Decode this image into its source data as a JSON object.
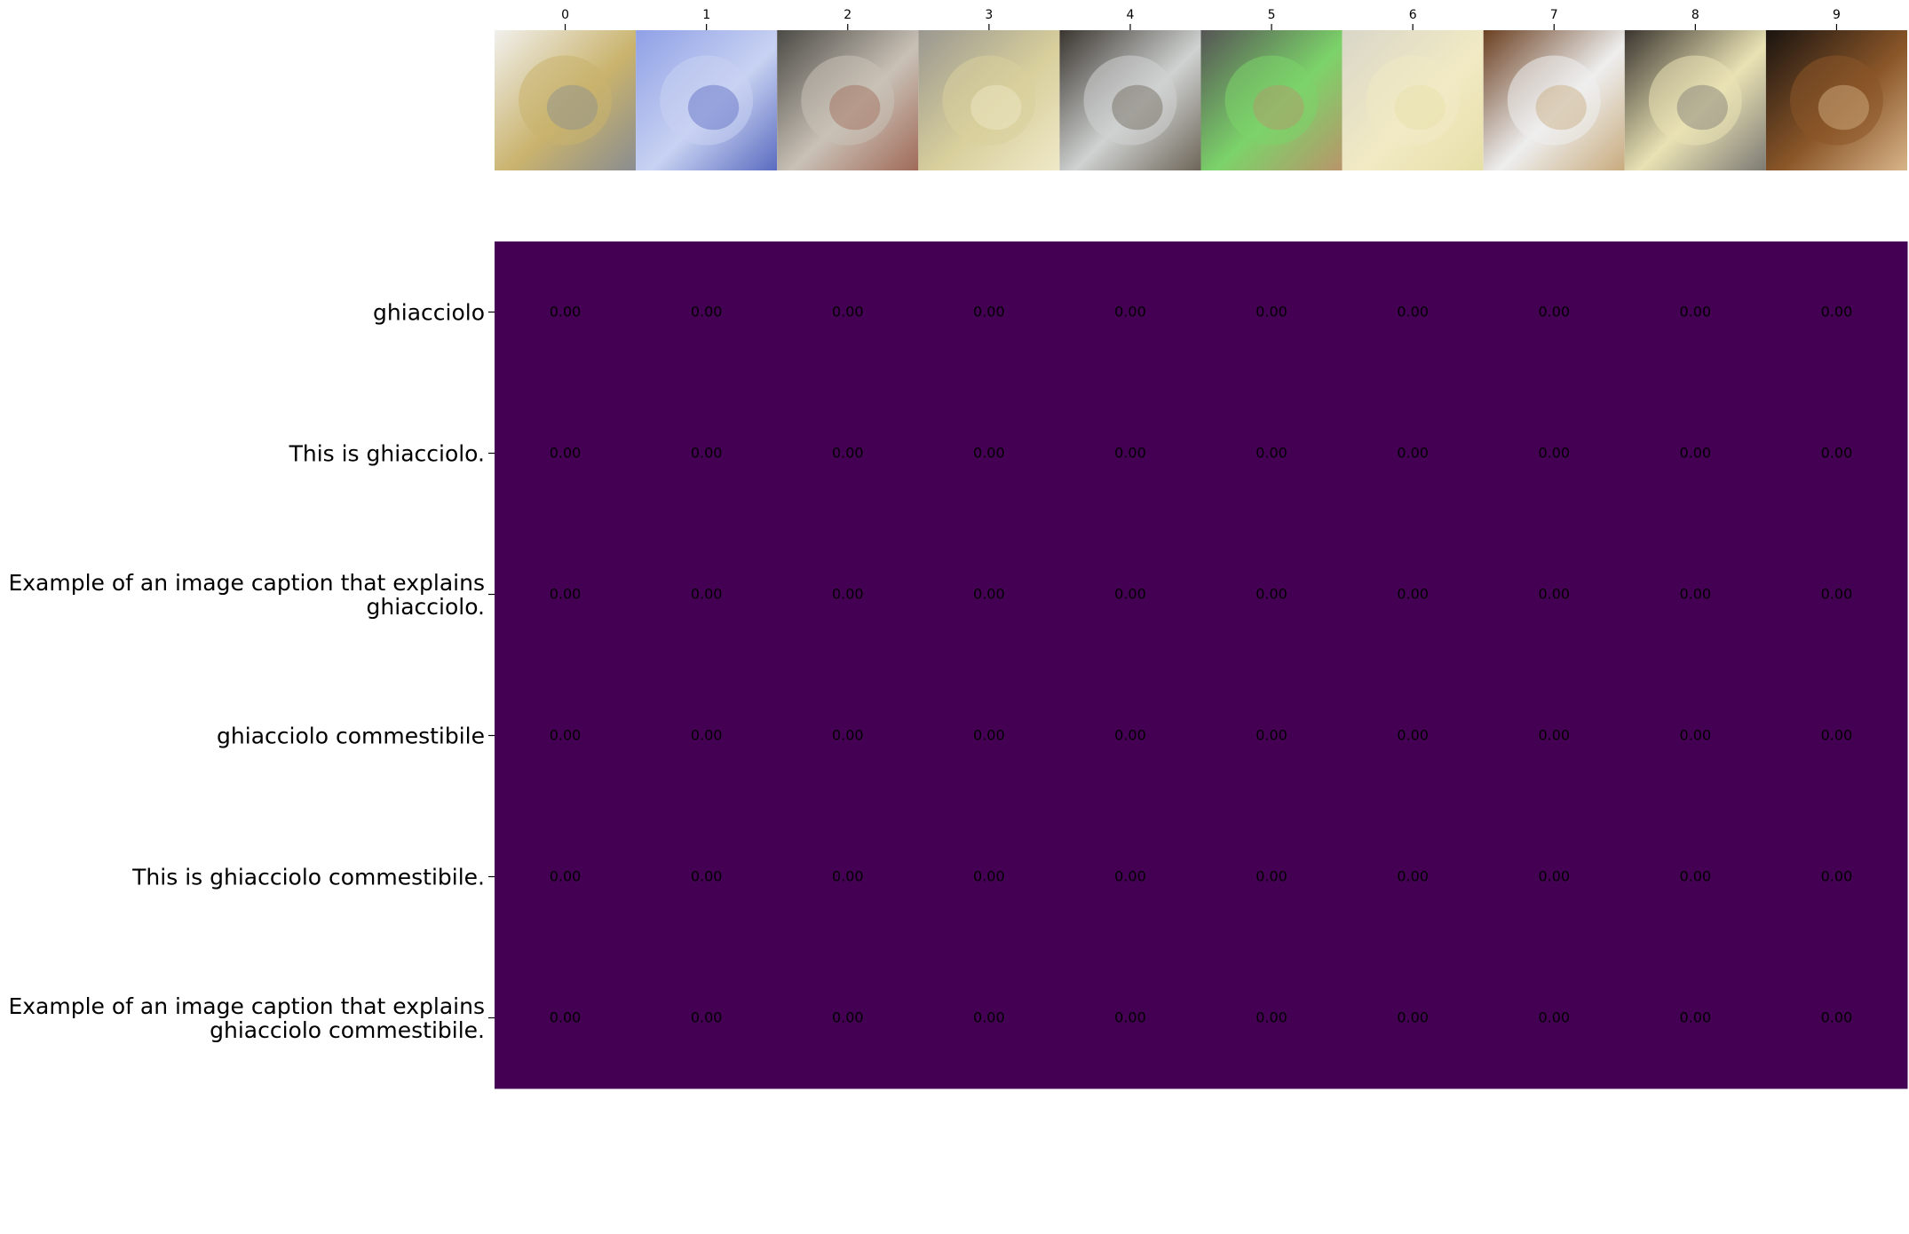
{
  "chart_data": {
    "type": "heatmap",
    "title": "",
    "xlabel": "",
    "ylabel": "",
    "x_categories": [
      "0",
      "1",
      "2",
      "3",
      "4",
      "5",
      "6",
      "7",
      "8",
      "9"
    ],
    "y_categories": [
      "ghiacciolo",
      "This is ghiacciolo.",
      "Example of an image caption that explains\nghiacciolo.",
      "ghiacciolo commestibile",
      "This is ghiacciolo commestibile.",
      "Example of an image caption that explains\nghiacciolo commestibile."
    ],
    "values": [
      [
        0.0,
        0.0,
        0.0,
        0.0,
        0.0,
        0.0,
        0.0,
        0.0,
        0.0,
        0.0
      ],
      [
        0.0,
        0.0,
        0.0,
        0.0,
        0.0,
        0.0,
        0.0,
        0.0,
        0.0,
        0.0
      ],
      [
        0.0,
        0.0,
        0.0,
        0.0,
        0.0,
        0.0,
        0.0,
        0.0,
        0.0,
        0.0
      ],
      [
        0.0,
        0.0,
        0.0,
        0.0,
        0.0,
        0.0,
        0.0,
        0.0,
        0.0,
        0.0
      ],
      [
        0.0,
        0.0,
        0.0,
        0.0,
        0.0,
        0.0,
        0.0,
        0.0,
        0.0,
        0.0
      ],
      [
        0.0,
        0.0,
        0.0,
        0.0,
        0.0,
        0.0,
        0.0,
        0.0,
        0.0,
        0.0
      ]
    ],
    "cell_labels": [
      [
        "0.00",
        "0.00",
        "0.00",
        "0.00",
        "0.00",
        "0.00",
        "0.00",
        "0.00",
        "0.00",
        "0.00"
      ],
      [
        "0.00",
        "0.00",
        "0.00",
        "0.00",
        "0.00",
        "0.00",
        "0.00",
        "0.00",
        "0.00",
        "0.00"
      ],
      [
        "0.00",
        "0.00",
        "0.00",
        "0.00",
        "0.00",
        "0.00",
        "0.00",
        "0.00",
        "0.00",
        "0.00"
      ],
      [
        "0.00",
        "0.00",
        "0.00",
        "0.00",
        "0.00",
        "0.00",
        "0.00",
        "0.00",
        "0.00",
        "0.00"
      ],
      [
        "0.00",
        "0.00",
        "0.00",
        "0.00",
        "0.00",
        "0.00",
        "0.00",
        "0.00",
        "0.00",
        "0.00"
      ],
      [
        "0.00",
        "0.00",
        "0.00",
        "0.00",
        "0.00",
        "0.00",
        "0.00",
        "0.00",
        "0.00",
        "0.00"
      ]
    ],
    "colormap_color": "#440154",
    "legend": "none",
    "grid": false,
    "thumbnails": [
      {
        "icon": "granola-bar-thumbnail",
        "colors": [
          "#f1f0ec",
          "#c9b36d",
          "#8a8d90"
        ]
      },
      {
        "icon": "ice-cubes-thumbnail",
        "colors": [
          "#8fa0e6",
          "#c8d2f2",
          "#5a6bc0"
        ]
      },
      {
        "icon": "hands-cleaning-fish-thumbnail",
        "colors": [
          "#4b4a45",
          "#c9c1b6",
          "#a06a58"
        ]
      },
      {
        "icon": "applesauce-bowl-thumbnail",
        "colors": [
          "#9a9790",
          "#d8cf9c",
          "#efe9c8"
        ]
      },
      {
        "icon": "icicles-thumbnail",
        "colors": [
          "#3a352f",
          "#cfd2d1",
          "#6d6558"
        ]
      },
      {
        "icon": "green-popsicle-thumbnail",
        "colors": [
          "#555555",
          "#7cd36a",
          "#b9956a"
        ]
      },
      {
        "icon": "cream-sauce-bowl-thumbnail",
        "colors": [
          "#d9d6c8",
          "#f1eac4",
          "#e7dfa8"
        ]
      },
      {
        "icon": "rice-plate-thumbnail",
        "colors": [
          "#6b4021",
          "#eeeeee",
          "#c8ab7e"
        ]
      },
      {
        "icon": "fruit-salad-bowl-thumbnail",
        "colors": [
          "#3b3530",
          "#e9e2b4",
          "#7d7a74"
        ]
      },
      {
        "icon": "iced-drink-glass-thumbnail",
        "colors": [
          "#1a1410",
          "#8a5628",
          "#d8b58a"
        ]
      }
    ]
  }
}
